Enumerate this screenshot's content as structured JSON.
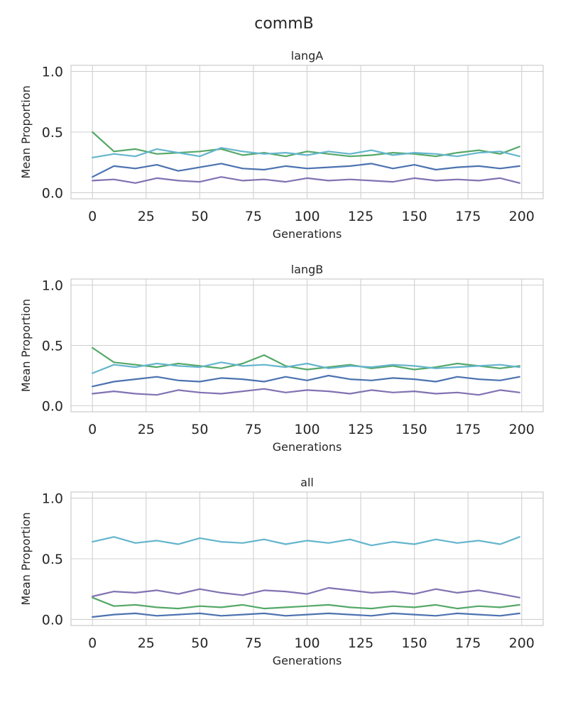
{
  "figure": {
    "title": "commB"
  },
  "chart_data": [
    {
      "type": "line",
      "title": "langA",
      "xlabel": "Generations",
      "ylabel": "Mean Proportion",
      "xlim": [
        -10,
        210
      ],
      "ylim": [
        -0.05,
        1.05
      ],
      "xticks": [
        0,
        25,
        50,
        75,
        100,
        125,
        150,
        175,
        200
      ],
      "yticks": [
        0.0,
        0.5,
        1.0
      ],
      "ytick_labels": [
        "0.0",
        "0.5",
        "1.0"
      ],
      "grid": true,
      "x": [
        0,
        10,
        20,
        30,
        40,
        50,
        60,
        70,
        80,
        90,
        100,
        110,
        120,
        130,
        140,
        150,
        160,
        170,
        180,
        190,
        199
      ],
      "series": [
        {
          "color": "#4c72b0",
          "values": [
            0.13,
            0.22,
            0.2,
            0.23,
            0.18,
            0.21,
            0.24,
            0.2,
            0.19,
            0.22,
            0.2,
            0.21,
            0.22,
            0.24,
            0.2,
            0.23,
            0.19,
            0.21,
            0.22,
            0.2,
            0.22
          ]
        },
        {
          "color": "#55a868",
          "values": [
            0.5,
            0.34,
            0.36,
            0.32,
            0.33,
            0.34,
            0.36,
            0.31,
            0.33,
            0.3,
            0.34,
            0.32,
            0.3,
            0.31,
            0.33,
            0.32,
            0.3,
            0.33,
            0.35,
            0.32,
            0.38
          ]
        },
        {
          "color": "#64b5cd",
          "values": [
            0.29,
            0.32,
            0.3,
            0.36,
            0.33,
            0.3,
            0.37,
            0.34,
            0.32,
            0.33,
            0.31,
            0.34,
            0.32,
            0.35,
            0.31,
            0.33,
            0.32,
            0.3,
            0.33,
            0.34,
            0.3
          ]
        },
        {
          "color": "#8172b2",
          "values": [
            0.1,
            0.11,
            0.08,
            0.12,
            0.1,
            0.09,
            0.13,
            0.1,
            0.11,
            0.09,
            0.12,
            0.1,
            0.11,
            0.1,
            0.09,
            0.12,
            0.1,
            0.11,
            0.1,
            0.12,
            0.08
          ]
        }
      ]
    },
    {
      "type": "line",
      "title": "langB",
      "xlabel": "Generations",
      "ylabel": "Mean Proportion",
      "xlim": [
        -10,
        210
      ],
      "ylim": [
        -0.05,
        1.05
      ],
      "xticks": [
        0,
        25,
        50,
        75,
        100,
        125,
        150,
        175,
        200
      ],
      "yticks": [
        0.0,
        0.5,
        1.0
      ],
      "ytick_labels": [
        "0.0",
        "0.5",
        "1.0"
      ],
      "grid": true,
      "x": [
        0,
        10,
        20,
        30,
        40,
        50,
        60,
        70,
        80,
        90,
        100,
        110,
        120,
        130,
        140,
        150,
        160,
        170,
        180,
        190,
        199
      ],
      "series": [
        {
          "color": "#4c72b0",
          "values": [
            0.16,
            0.2,
            0.22,
            0.24,
            0.21,
            0.2,
            0.23,
            0.22,
            0.2,
            0.24,
            0.21,
            0.25,
            0.22,
            0.21,
            0.23,
            0.22,
            0.2,
            0.24,
            0.22,
            0.21,
            0.24
          ]
        },
        {
          "color": "#55a868",
          "values": [
            0.48,
            0.36,
            0.34,
            0.32,
            0.35,
            0.33,
            0.31,
            0.35,
            0.42,
            0.33,
            0.3,
            0.32,
            0.34,
            0.31,
            0.33,
            0.3,
            0.32,
            0.35,
            0.33,
            0.31,
            0.33
          ]
        },
        {
          "color": "#64b5cd",
          "values": [
            0.27,
            0.34,
            0.32,
            0.35,
            0.33,
            0.32,
            0.36,
            0.33,
            0.34,
            0.32,
            0.35,
            0.31,
            0.33,
            0.32,
            0.34,
            0.33,
            0.31,
            0.32,
            0.33,
            0.34,
            0.32
          ]
        },
        {
          "color": "#8172b2",
          "values": [
            0.1,
            0.12,
            0.1,
            0.09,
            0.13,
            0.11,
            0.1,
            0.12,
            0.14,
            0.11,
            0.13,
            0.12,
            0.1,
            0.13,
            0.11,
            0.12,
            0.1,
            0.11,
            0.09,
            0.13,
            0.11
          ]
        }
      ]
    },
    {
      "type": "line",
      "title": "all",
      "xlabel": "Generations",
      "ylabel": "Mean Proportion",
      "xlim": [
        -10,
        210
      ],
      "ylim": [
        -0.05,
        1.05
      ],
      "xticks": [
        0,
        25,
        50,
        75,
        100,
        125,
        150,
        175,
        200
      ],
      "yticks": [
        0.0,
        0.5,
        1.0
      ],
      "ytick_labels": [
        "0.0",
        "0.5",
        "1.0"
      ],
      "grid": true,
      "x": [
        0,
        10,
        20,
        30,
        40,
        50,
        60,
        70,
        80,
        90,
        100,
        110,
        120,
        130,
        140,
        150,
        160,
        170,
        180,
        190,
        199
      ],
      "series": [
        {
          "color": "#4c72b0",
          "values": [
            0.02,
            0.04,
            0.05,
            0.03,
            0.04,
            0.05,
            0.03,
            0.04,
            0.05,
            0.03,
            0.04,
            0.05,
            0.04,
            0.03,
            0.05,
            0.04,
            0.03,
            0.05,
            0.04,
            0.03,
            0.05
          ]
        },
        {
          "color": "#55a868",
          "values": [
            0.18,
            0.11,
            0.12,
            0.1,
            0.09,
            0.11,
            0.1,
            0.12,
            0.09,
            0.1,
            0.11,
            0.12,
            0.1,
            0.09,
            0.11,
            0.1,
            0.12,
            0.09,
            0.11,
            0.1,
            0.12
          ]
        },
        {
          "color": "#64b5cd",
          "values": [
            0.64,
            0.68,
            0.63,
            0.65,
            0.62,
            0.67,
            0.64,
            0.63,
            0.66,
            0.62,
            0.65,
            0.63,
            0.66,
            0.61,
            0.64,
            0.62,
            0.66,
            0.63,
            0.65,
            0.62,
            0.68
          ]
        },
        {
          "color": "#8172b2",
          "values": [
            0.19,
            0.23,
            0.22,
            0.24,
            0.21,
            0.25,
            0.22,
            0.2,
            0.24,
            0.23,
            0.21,
            0.26,
            0.24,
            0.22,
            0.23,
            0.21,
            0.25,
            0.22,
            0.24,
            0.21,
            0.18
          ]
        }
      ]
    }
  ]
}
